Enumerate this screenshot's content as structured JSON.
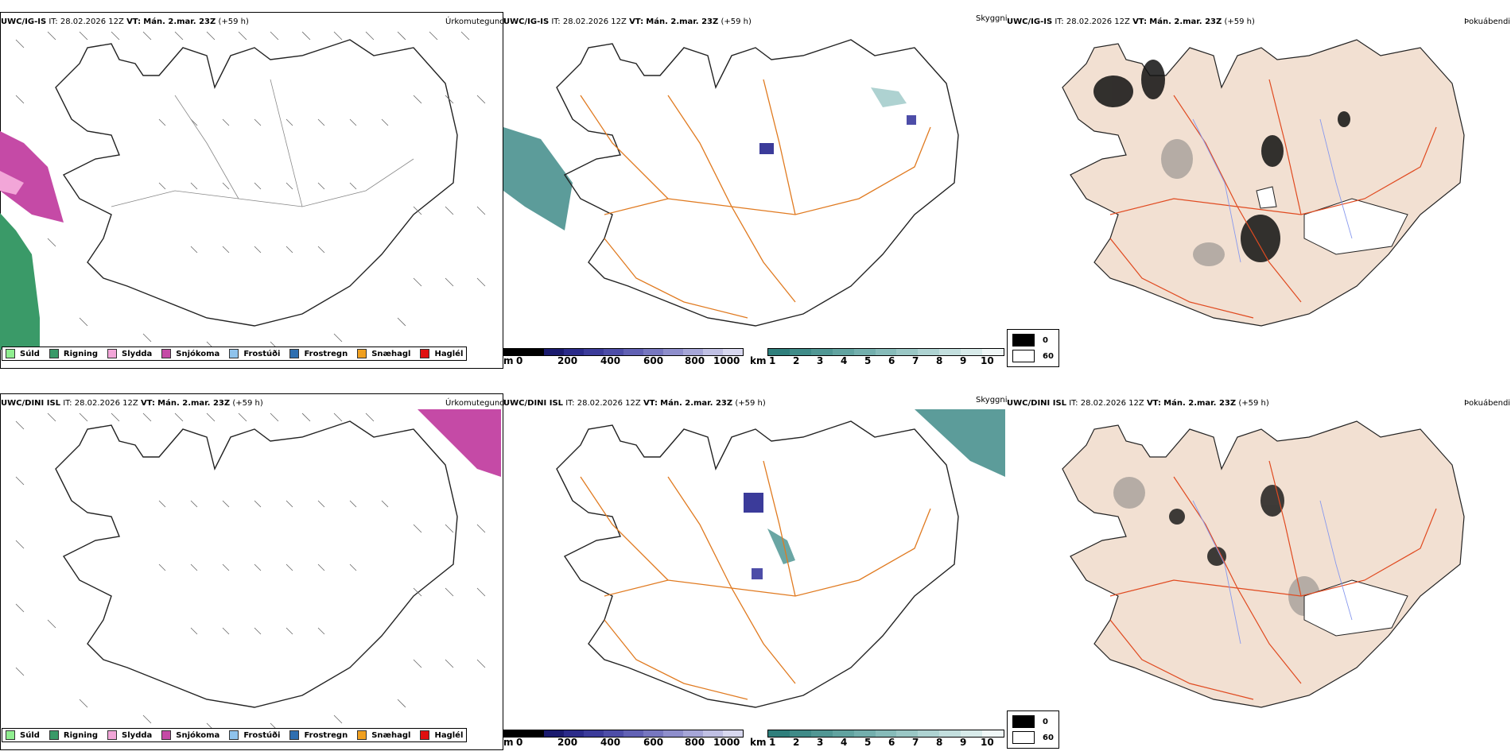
{
  "rows": [
    {
      "model": "UWC/IG-IS",
      "it_label": "IT:",
      "it_value": "28.02.2026 12Z",
      "vt_label": "VT:",
      "vt_value": "Mán. 2.mar. 23Z",
      "lead": "(+59 h)"
    },
    {
      "model": "UWC/DINI ISL",
      "it_label": "IT:",
      "it_value": "28.02.2026 12Z",
      "vt_label": "VT:",
      "vt_value": "Mán. 2.mar. 23Z",
      "lead": "(+59 h)"
    }
  ],
  "panel_titles": {
    "precip": "Úrkomutegund",
    "visibility": "Skyggni",
    "fog": "Þokuábendi"
  },
  "precip_legend": [
    {
      "label": "Súld",
      "color": "#90ee90"
    },
    {
      "label": "Rigning",
      "color": "#3a9a68"
    },
    {
      "label": "Slydda",
      "color": "#f2a6d8"
    },
    {
      "label": "Snjókoma",
      "color": "#c54aa6"
    },
    {
      "label": "Frostúði",
      "color": "#8fc3ec"
    },
    {
      "label": "Frostregn",
      "color": "#2f6fb0"
    },
    {
      "label": "Snæhagl",
      "color": "#f0a020"
    },
    {
      "label": "Haglél",
      "color": "#e01010"
    }
  ],
  "elevation_bar": {
    "unit": "m",
    "ticks": [
      "0",
      "200",
      "400",
      "600",
      "800",
      "1000"
    ],
    "colors": [
      "#000000",
      "#1a1a6e",
      "#2b2b8a",
      "#3b3b9a",
      "#4d4da8",
      "#6161b4",
      "#7777c0",
      "#8e8ecc",
      "#a6a6d8",
      "#c0c0e4",
      "#d8d8ef"
    ]
  },
  "visibility_bar": {
    "unit": "km",
    "ticks": [
      "1",
      "2",
      "3",
      "4",
      "5",
      "6",
      "7",
      "8",
      "9",
      "10"
    ],
    "colors": [
      "#2f7f7c",
      "#3f8b88",
      "#509794",
      "#61a3a0",
      "#73afad",
      "#86bbb9",
      "#9ac7c5",
      "#aed3d2",
      "#c3dfde",
      "#d8ebea",
      "#f0f7f7"
    ]
  },
  "fog_legend": [
    {
      "label": "0",
      "color": "#000000"
    },
    {
      "label": "60",
      "color": "#ffffff"
    }
  ],
  "colors": {
    "roads": "#e07a20",
    "land_fog": "#f2e0d2",
    "rivers": "#8899ee",
    "snow_magenta": "#c54aa6",
    "rain_green": "#3a9a68"
  }
}
